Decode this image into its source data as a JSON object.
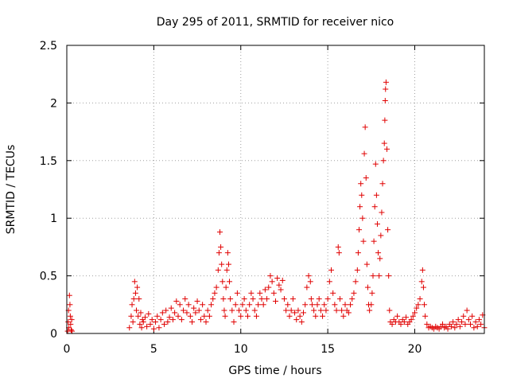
{
  "chart_data": {
    "type": "scatter",
    "title": "Day 295 of 2011, SRMTID for receiver nico",
    "xlabel": "GPS time / hours",
    "ylabel": "SRMTID / TECUs",
    "xlim": [
      0,
      24
    ],
    "ylim": [
      0,
      2.5
    ],
    "xticks": [
      0,
      5,
      10,
      15,
      20
    ],
    "xtick_labels": [
      "0",
      "5",
      "10",
      "15",
      "20"
    ],
    "yticks": [
      0,
      0.5,
      1,
      1.5,
      2,
      2.5
    ],
    "ytick_labels": [
      "0",
      "0.5",
      "1",
      "1.5",
      "2",
      "2.5"
    ],
    "grid": true,
    "legend": "none",
    "marker": "+",
    "color": "#e00000",
    "series": [
      {
        "name": "SRMTID",
        "points": [
          [
            0.05,
            0.02
          ],
          [
            0.08,
            0.1
          ],
          [
            0.1,
            0.2
          ],
          [
            0.12,
            0.05
          ],
          [
            0.15,
            0.33
          ],
          [
            0.18,
            0.25
          ],
          [
            0.2,
            0.15
          ],
          [
            0.22,
            0.08
          ],
          [
            0.25,
            0.03
          ],
          [
            0.28,
            0.12
          ],
          [
            0.3,
            0.02
          ],
          [
            3.6,
            0.05
          ],
          [
            3.7,
            0.15
          ],
          [
            3.75,
            0.25
          ],
          [
            3.8,
            0.1
          ],
          [
            3.85,
            0.3
          ],
          [
            3.9,
            0.45
          ],
          [
            3.95,
            0.35
          ],
          [
            4.0,
            0.2
          ],
          [
            4.05,
            0.4
          ],
          [
            4.1,
            0.15
          ],
          [
            4.15,
            0.3
          ],
          [
            4.2,
            0.08
          ],
          [
            4.25,
            0.18
          ],
          [
            4.3,
            0.05
          ],
          [
            4.35,
            0.12
          ],
          [
            4.4,
            0.1
          ],
          [
            4.5,
            0.14
          ],
          [
            4.6,
            0.06
          ],
          [
            4.7,
            0.17
          ],
          [
            4.8,
            0.08
          ],
          [
            4.9,
            0.12
          ],
          [
            5.0,
            0.04
          ],
          [
            5.1,
            0.1
          ],
          [
            5.2,
            0.15
          ],
          [
            5.3,
            0.05
          ],
          [
            5.4,
            0.12
          ],
          [
            5.5,
            0.18
          ],
          [
            5.6,
            0.08
          ],
          [
            5.7,
            0.2
          ],
          [
            5.8,
            0.1
          ],
          [
            5.9,
            0.14
          ],
          [
            6.0,
            0.22
          ],
          [
            6.1,
            0.12
          ],
          [
            6.2,
            0.18
          ],
          [
            6.3,
            0.28
          ],
          [
            6.4,
            0.15
          ],
          [
            6.5,
            0.25
          ],
          [
            6.6,
            0.12
          ],
          [
            6.7,
            0.2
          ],
          [
            6.8,
            0.3
          ],
          [
            6.9,
            0.18
          ],
          [
            7.0,
            0.25
          ],
          [
            7.1,
            0.15
          ],
          [
            7.2,
            0.1
          ],
          [
            7.3,
            0.22
          ],
          [
            7.4,
            0.18
          ],
          [
            7.5,
            0.28
          ],
          [
            7.6,
            0.2
          ],
          [
            7.7,
            0.12
          ],
          [
            7.8,
            0.25
          ],
          [
            7.9,
            0.15
          ],
          [
            8.0,
            0.1
          ],
          [
            8.1,
            0.2
          ],
          [
            8.2,
            0.15
          ],
          [
            8.3,
            0.25
          ],
          [
            8.4,
            0.3
          ],
          [
            8.5,
            0.35
          ],
          [
            8.6,
            0.4
          ],
          [
            8.7,
            0.55
          ],
          [
            8.75,
            0.7
          ],
          [
            8.8,
            0.88
          ],
          [
            8.85,
            0.75
          ],
          [
            8.9,
            0.6
          ],
          [
            8.95,
            0.45
          ],
          [
            9.0,
            0.3
          ],
          [
            9.05,
            0.2
          ],
          [
            9.1,
            0.15
          ],
          [
            9.15,
            0.4
          ],
          [
            9.2,
            0.55
          ],
          [
            9.25,
            0.7
          ],
          [
            9.3,
            0.6
          ],
          [
            9.35,
            0.45
          ],
          [
            9.4,
            0.3
          ],
          [
            9.5,
            0.2
          ],
          [
            9.6,
            0.1
          ],
          [
            9.7,
            0.25
          ],
          [
            9.8,
            0.35
          ],
          [
            9.9,
            0.2
          ],
          [
            10.0,
            0.15
          ],
          [
            10.1,
            0.25
          ],
          [
            10.2,
            0.3
          ],
          [
            10.3,
            0.2
          ],
          [
            10.4,
            0.15
          ],
          [
            10.5,
            0.25
          ],
          [
            10.6,
            0.35
          ],
          [
            10.7,
            0.3
          ],
          [
            10.8,
            0.2
          ],
          [
            10.9,
            0.15
          ],
          [
            11.0,
            0.25
          ],
          [
            11.1,
            0.35
          ],
          [
            11.2,
            0.3
          ],
          [
            11.3,
            0.25
          ],
          [
            11.4,
            0.38
          ],
          [
            11.5,
            0.3
          ],
          [
            11.6,
            0.4
          ],
          [
            11.7,
            0.5
          ],
          [
            11.8,
            0.45
          ],
          [
            11.9,
            0.35
          ],
          [
            12.0,
            0.28
          ],
          [
            12.1,
            0.48
          ],
          [
            12.2,
            0.42
          ],
          [
            12.3,
            0.38
          ],
          [
            12.4,
            0.46
          ],
          [
            12.5,
            0.3
          ],
          [
            12.6,
            0.2
          ],
          [
            12.7,
            0.25
          ],
          [
            12.8,
            0.15
          ],
          [
            12.9,
            0.2
          ],
          [
            13.0,
            0.3
          ],
          [
            13.1,
            0.18
          ],
          [
            13.2,
            0.12
          ],
          [
            13.3,
            0.2
          ],
          [
            13.4,
            0.15
          ],
          [
            13.5,
            0.1
          ],
          [
            13.6,
            0.18
          ],
          [
            13.7,
            0.25
          ],
          [
            13.8,
            0.4
          ],
          [
            13.9,
            0.5
          ],
          [
            14.0,
            0.45
          ],
          [
            14.05,
            0.3
          ],
          [
            14.1,
            0.25
          ],
          [
            14.2,
            0.2
          ],
          [
            14.3,
            0.15
          ],
          [
            14.4,
            0.25
          ],
          [
            14.5,
            0.3
          ],
          [
            14.6,
            0.2
          ],
          [
            14.7,
            0.15
          ],
          [
            14.8,
            0.25
          ],
          [
            14.9,
            0.2
          ],
          [
            15.0,
            0.3
          ],
          [
            15.1,
            0.45
          ],
          [
            15.2,
            0.55
          ],
          [
            15.3,
            0.35
          ],
          [
            15.4,
            0.25
          ],
          [
            15.5,
            0.2
          ],
          [
            15.6,
            0.75
          ],
          [
            15.65,
            0.7
          ],
          [
            15.7,
            0.3
          ],
          [
            15.8,
            0.2
          ],
          [
            15.9,
            0.15
          ],
          [
            16.0,
            0.25
          ],
          [
            16.1,
            0.2
          ],
          [
            16.2,
            0.18
          ],
          [
            16.3,
            0.25
          ],
          [
            16.4,
            0.3
          ],
          [
            16.5,
            0.35
          ],
          [
            16.6,
            0.45
          ],
          [
            16.7,
            0.55
          ],
          [
            16.75,
            0.7
          ],
          [
            16.8,
            0.9
          ],
          [
            16.85,
            1.1
          ],
          [
            16.9,
            1.3
          ],
          [
            16.95,
            1.2
          ],
          [
            17.0,
            1.0
          ],
          [
            17.05,
            0.8
          ],
          [
            17.1,
            1.56
          ],
          [
            17.15,
            1.79
          ],
          [
            17.2,
            1.35
          ],
          [
            17.25,
            0.6
          ],
          [
            17.3,
            0.4
          ],
          [
            17.35,
            0.25
          ],
          [
            17.4,
            0.2
          ],
          [
            17.5,
            0.25
          ],
          [
            17.55,
            0.35
          ],
          [
            17.6,
            0.5
          ],
          [
            17.65,
            0.8
          ],
          [
            17.7,
            1.1
          ],
          [
            17.75,
            1.47
          ],
          [
            17.8,
            1.2
          ],
          [
            17.85,
            0.95
          ],
          [
            17.9,
            0.7
          ],
          [
            17.95,
            0.5
          ],
          [
            18.0,
            0.65
          ],
          [
            18.05,
            0.85
          ],
          [
            18.1,
            1.05
          ],
          [
            18.15,
            1.3
          ],
          [
            18.2,
            1.5
          ],
          [
            18.25,
            1.65
          ],
          [
            18.28,
            1.85
          ],
          [
            18.3,
            2.02
          ],
          [
            18.32,
            2.12
          ],
          [
            18.35,
            2.18
          ],
          [
            18.4,
            1.6
          ],
          [
            18.45,
            0.9
          ],
          [
            18.5,
            0.5
          ],
          [
            18.55,
            0.2
          ],
          [
            18.6,
            0.1
          ],
          [
            18.7,
            0.08
          ],
          [
            18.8,
            0.12
          ],
          [
            18.9,
            0.1
          ],
          [
            19.0,
            0.15
          ],
          [
            19.1,
            0.1
          ],
          [
            19.2,
            0.08
          ],
          [
            19.3,
            0.12
          ],
          [
            19.4,
            0.1
          ],
          [
            19.5,
            0.14
          ],
          [
            19.6,
            0.08
          ],
          [
            19.7,
            0.1
          ],
          [
            19.8,
            0.12
          ],
          [
            19.9,
            0.15
          ],
          [
            20.0,
            0.18
          ],
          [
            20.1,
            0.22
          ],
          [
            20.2,
            0.25
          ],
          [
            20.3,
            0.3
          ],
          [
            20.4,
            0.45
          ],
          [
            20.45,
            0.55
          ],
          [
            20.5,
            0.4
          ],
          [
            20.55,
            0.25
          ],
          [
            20.6,
            0.15
          ],
          [
            20.7,
            0.08
          ],
          [
            20.8,
            0.05
          ],
          [
            20.9,
            0.06
          ],
          [
            21.0,
            0.05
          ],
          [
            21.1,
            0.04
          ],
          [
            21.2,
            0.06
          ],
          [
            21.3,
            0.05
          ],
          [
            21.4,
            0.04
          ],
          [
            21.5,
            0.06
          ],
          [
            21.6,
            0.08
          ],
          [
            21.7,
            0.05
          ],
          [
            21.8,
            0.06
          ],
          [
            21.9,
            0.04
          ],
          [
            22.0,
            0.08
          ],
          [
            22.1,
            0.06
          ],
          [
            22.2,
            0.1
          ],
          [
            22.3,
            0.05
          ],
          [
            22.4,
            0.08
          ],
          [
            22.5,
            0.12
          ],
          [
            22.6,
            0.06
          ],
          [
            22.7,
            0.1
          ],
          [
            22.8,
            0.15
          ],
          [
            22.9,
            0.08
          ],
          [
            23.0,
            0.2
          ],
          [
            23.1,
            0.12
          ],
          [
            23.2,
            0.08
          ],
          [
            23.3,
            0.15
          ],
          [
            23.4,
            0.05
          ],
          [
            23.5,
            0.1
          ],
          [
            23.6,
            0.06
          ],
          [
            23.7,
            0.12
          ],
          [
            23.8,
            0.08
          ],
          [
            23.9,
            0.16
          ],
          [
            24.0,
            0.05
          ]
        ]
      }
    ]
  }
}
